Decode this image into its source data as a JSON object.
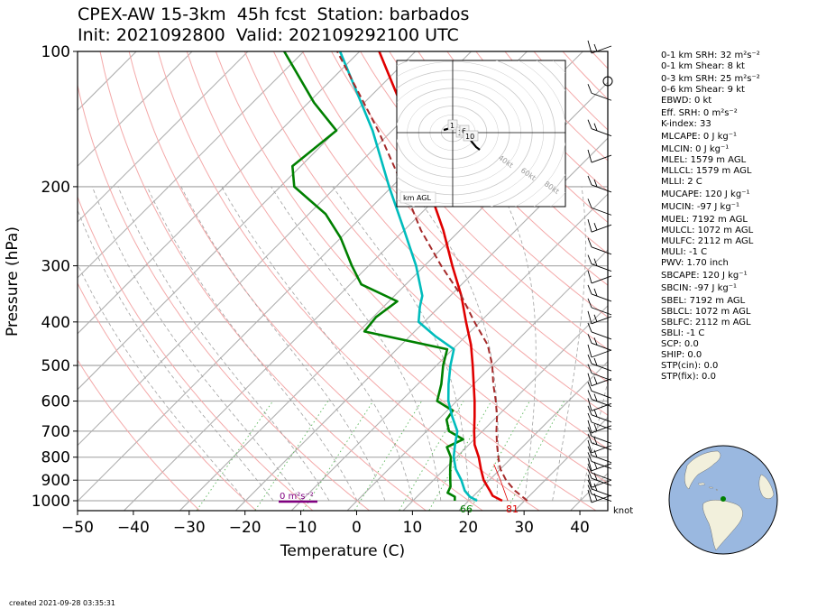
{
  "title": {
    "line1": "CPEX-AW 15-3km  45h fcst  Station: barbados",
    "line2": "Init: 2021092800  Valid: 202109292100 UTC"
  },
  "footer": {
    "created": "created 2021-09-28 03:35:31"
  },
  "stats": [
    "0-1 km SRH: 32 m²s⁻²",
    "0-1 km Shear: 8 kt",
    "0-3 km SRH: 25 m²s⁻²",
    "0-6 km Shear: 9 kt",
    "EBWD: 0 kt",
    "Eff. SRH: 0 m²s⁻²",
    "K-index: 33",
    "MLCAPE: 0 J kg⁻¹",
    "MLCIN: 0 J kg⁻¹",
    "MLEL: 1579 m AGL",
    "MLLCL: 1579 m AGL",
    "MLLI: 2 C",
    "MUCAPE: 120 J kg⁻¹",
    "MUCIN: -97 J kg⁻¹",
    "MUEL: 7192 m AGL",
    "MULCL: 1072 m AGL",
    "MULFC: 2112 m AGL",
    "MULI: -1 C",
    "PWV: 1.70 inch",
    "SBCAPE: 120 J kg⁻¹",
    "SBCIN: -97 J kg⁻¹",
    "SBEL: 7192 m AGL",
    "SBLCL: 1072 m AGL",
    "SBLFC: 2112 m AGL",
    "SBLI: -1 C",
    "SCP: 0.0",
    "SHIP: 0.0",
    "STP(cin): 0.0",
    "STP(fix): 0.0"
  ],
  "hodograph": {
    "corner_label": "km AGL",
    "ring_labels": [
      "40kt",
      "60kt",
      "80kt"
    ],
    "height_labels": [
      "1",
      "3",
      "6",
      "10"
    ]
  },
  "chart_data": {
    "type": "line",
    "subtype": "skew-T log-P sounding",
    "xlabel": "Temperature (C)",
    "ylabel": "Pressure (hPa)",
    "xlim": [
      -50,
      45
    ],
    "ylim": [
      1050,
      100
    ],
    "y_scale": "log",
    "skew_deg_per_decade_note": "isotherms skewed 45 degrees",
    "xticks": [
      -50,
      -40,
      -30,
      -20,
      -10,
      0,
      10,
      20,
      30,
      40
    ],
    "yticks": [
      100,
      200,
      300,
      400,
      500,
      600,
      700,
      800,
      900,
      1000
    ],
    "annotations": {
      "surface_theta_e_label": "81",
      "surface_dewpoint_label": "66",
      "srh_bar_label": "0 m²s⁻²",
      "barb_units": "knot"
    },
    "series": [
      {
        "key": "temperature",
        "color": "#e00000",
        "points": [
          [
            1000,
            26.0
          ],
          [
            975,
            23.4
          ],
          [
            950,
            22.0
          ],
          [
            925,
            20.5
          ],
          [
            900,
            19.0
          ],
          [
            850,
            16.5
          ],
          [
            800,
            14.0
          ],
          [
            750,
            11.0
          ],
          [
            700,
            8.5
          ],
          [
            650,
            6.0
          ],
          [
            600,
            3.2
          ],
          [
            550,
            0.0
          ],
          [
            500,
            -3.5
          ],
          [
            450,
            -7.5
          ],
          [
            400,
            -12.5
          ],
          [
            350,
            -18.0
          ],
          [
            300,
            -25.0
          ],
          [
            250,
            -33.0
          ],
          [
            200,
            -43.5
          ],
          [
            150,
            -56.5
          ],
          [
            100,
            -76.5
          ]
        ]
      },
      {
        "key": "dewpoint",
        "color": "#008000",
        "points": [
          [
            1000,
            17.5
          ],
          [
            980,
            16.8
          ],
          [
            960,
            14.8
          ],
          [
            930,
            14.2
          ],
          [
            900,
            13.0
          ],
          [
            850,
            11.0
          ],
          [
            800,
            9.0
          ],
          [
            760,
            6.5
          ],
          [
            730,
            8.0
          ],
          [
            700,
            4.0
          ],
          [
            660,
            1.5
          ],
          [
            630,
            1.0
          ],
          [
            600,
            -3.5
          ],
          [
            550,
            -5.8
          ],
          [
            500,
            -8.8
          ],
          [
            460,
            -11.0
          ],
          [
            420,
            -29.0
          ],
          [
            390,
            -29.5
          ],
          [
            360,
            -28.5
          ],
          [
            330,
            -38.0
          ],
          [
            300,
            -43.0
          ],
          [
            260,
            -50.0
          ],
          [
            230,
            -57.0
          ],
          [
            200,
            -67.5
          ],
          [
            180,
            -71.5
          ],
          [
            150,
            -70.0
          ],
          [
            130,
            -79.0
          ],
          [
            100,
            -93.5
          ]
        ]
      },
      {
        "key": "parcel_virtual_temp",
        "color": "#00bcbc",
        "points": [
          [
            1000,
            21.5
          ],
          [
            980,
            19.5
          ],
          [
            950,
            17.5
          ],
          [
            900,
            15.0
          ],
          [
            850,
            12.0
          ],
          [
            800,
            9.5
          ],
          [
            750,
            7.5
          ],
          [
            700,
            5.5
          ],
          [
            650,
            2.0
          ],
          [
            600,
            -1.5
          ],
          [
            550,
            -4.5
          ],
          [
            500,
            -7.5
          ],
          [
            460,
            -9.8
          ],
          [
            430,
            -15.5
          ],
          [
            400,
            -21.0
          ],
          [
            370,
            -23.5
          ],
          [
            350,
            -25.0
          ],
          [
            300,
            -31.5
          ],
          [
            250,
            -40.0
          ],
          [
            200,
            -50.5
          ],
          [
            150,
            -63.5
          ],
          [
            100,
            -83.5
          ]
        ]
      },
      {
        "key": "parcel_trace",
        "color": "#a52a2a",
        "dashed": true,
        "points": [
          [
            1000,
            30.5
          ],
          [
            950,
            26.5
          ],
          [
            900,
            23.0
          ],
          [
            850,
            20.0
          ],
          [
            800,
            17.5
          ],
          [
            750,
            15.0
          ],
          [
            700,
            12.5
          ],
          [
            650,
            10.0
          ],
          [
            600,
            7.0
          ],
          [
            550,
            3.5
          ],
          [
            500,
            0.0
          ],
          [
            450,
            -4.5
          ],
          [
            400,
            -11.0
          ],
          [
            350,
            -18.0
          ],
          [
            300,
            -27.0
          ],
          [
            250,
            -37.0
          ],
          [
            200,
            -48.0
          ],
          [
            150,
            -62.5
          ],
          [
            100,
            -84.0
          ]
        ]
      }
    ]
  }
}
